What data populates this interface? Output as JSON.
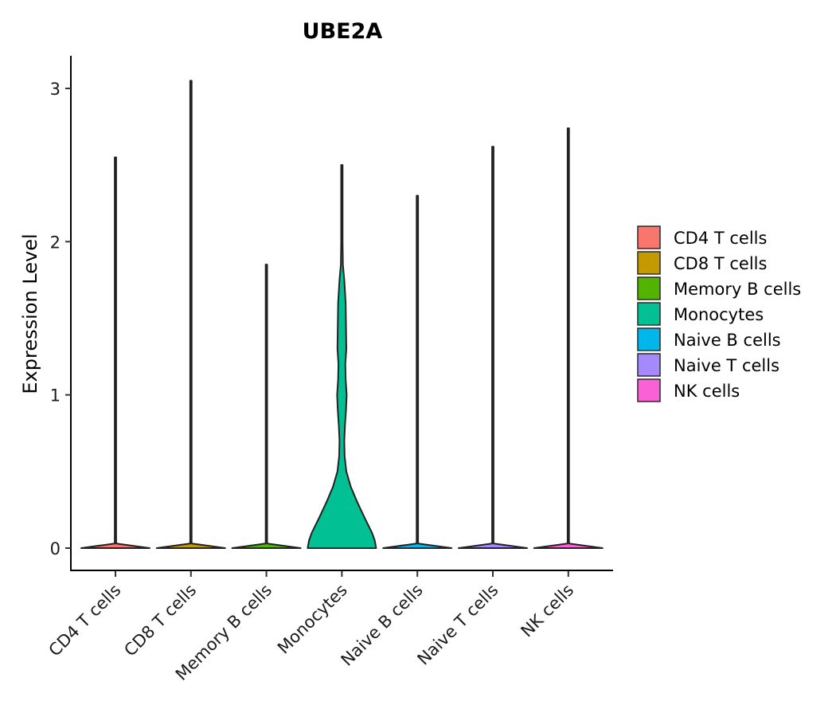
{
  "chart_data": {
    "type": "violin",
    "title": "UBE2A",
    "xlabel": "",
    "ylabel": "Expression Level",
    "ylim": [
      -0.15,
      3.2
    ],
    "yticks": [
      0,
      1,
      2,
      3
    ],
    "grid": false,
    "legend_position": "right",
    "categories": [
      "CD4 T cells",
      "CD8 T cells",
      "Memory B cells",
      "Monocytes",
      "Naive B cells",
      "Naive T cells",
      "NK cells"
    ],
    "colors": [
      "#F8766D",
      "#C49A00",
      "#53B400",
      "#00C094",
      "#00B6EB",
      "#A58AFF",
      "#FB61D7"
    ],
    "max_values": [
      2.55,
      3.05,
      1.85,
      2.5,
      2.3,
      2.62,
      2.74
    ],
    "violins": [
      {
        "name": "CD4 T cells",
        "density": [
          [
            0,
            1
          ],
          [
            0.03,
            0.02
          ],
          [
            1,
            0.002
          ],
          [
            2,
            0.001
          ],
          [
            2.55,
            0
          ]
        ]
      },
      {
        "name": "CD8 T cells",
        "density": [
          [
            0,
            1
          ],
          [
            0.03,
            0.02
          ],
          [
            1,
            0.002
          ],
          [
            2,
            0.001
          ],
          [
            3.05,
            0
          ]
        ]
      },
      {
        "name": "Memory B cells",
        "density": [
          [
            0,
            1
          ],
          [
            0.03,
            0.02
          ],
          [
            1,
            0.002
          ],
          [
            1.5,
            0.004
          ],
          [
            1.85,
            0
          ]
        ]
      },
      {
        "name": "Monocytes",
        "density": [
          [
            0,
            1
          ],
          [
            0.05,
            0.96
          ],
          [
            0.1,
            0.88
          ],
          [
            0.2,
            0.66
          ],
          [
            0.3,
            0.45
          ],
          [
            0.4,
            0.26
          ],
          [
            0.5,
            0.13
          ],
          [
            0.6,
            0.08
          ],
          [
            0.7,
            0.07
          ],
          [
            0.8,
            0.09
          ],
          [
            0.9,
            0.12
          ],
          [
            1.0,
            0.14
          ],
          [
            1.1,
            0.11
          ],
          [
            1.2,
            0.1
          ],
          [
            1.3,
            0.13
          ],
          [
            1.45,
            0.12
          ],
          [
            1.6,
            0.11
          ],
          [
            1.75,
            0.07
          ],
          [
            1.85,
            0.03
          ],
          [
            2.0,
            0.01
          ],
          [
            2.2,
            0.006
          ],
          [
            2.5,
            0
          ]
        ]
      },
      {
        "name": "Naive B cells",
        "density": [
          [
            0,
            1
          ],
          [
            0.03,
            0.02
          ],
          [
            1,
            0.002
          ],
          [
            2,
            0.001
          ],
          [
            2.3,
            0
          ]
        ]
      },
      {
        "name": "Naive T cells",
        "density": [
          [
            0,
            1
          ],
          [
            0.03,
            0.02
          ],
          [
            1,
            0.002
          ],
          [
            2,
            0.001
          ],
          [
            2.62,
            0
          ]
        ]
      },
      {
        "name": "NK cells",
        "density": [
          [
            0,
            1
          ],
          [
            0.03,
            0.02
          ],
          [
            1,
            0.002
          ],
          [
            2,
            0.001
          ],
          [
            2.74,
            0
          ]
        ]
      }
    ]
  }
}
